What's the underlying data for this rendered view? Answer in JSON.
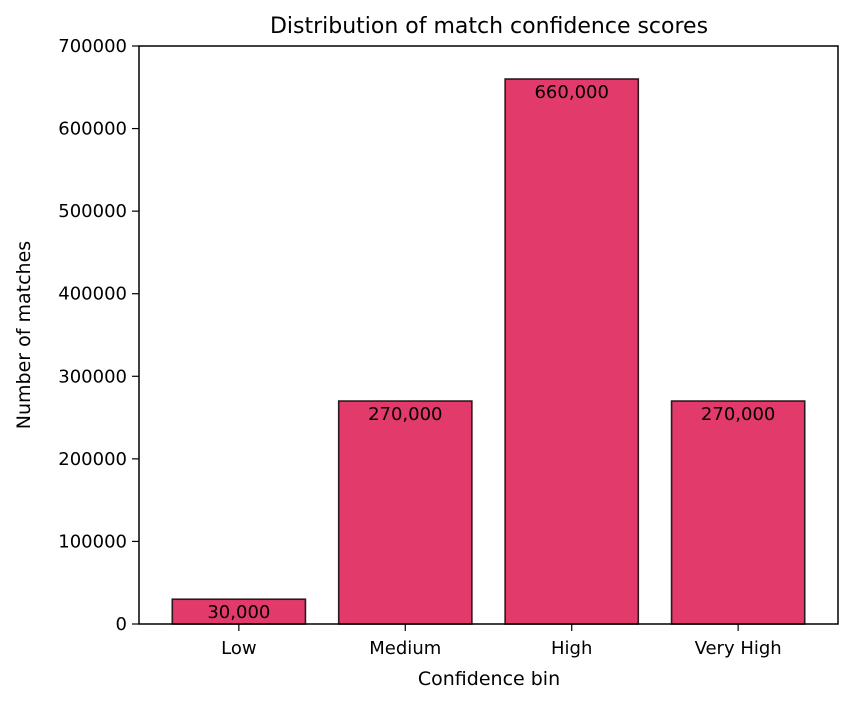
{
  "chart_data": {
    "type": "bar",
    "title": "Distribution of match confidence scores",
    "xlabel": "Confidence bin",
    "ylabel": "Number of matches",
    "categories": [
      "Low",
      "Medium",
      "High",
      "Very High"
    ],
    "values": [
      30000,
      270000,
      660000,
      270000
    ],
    "value_labels": [
      "30,000",
      "270,000",
      "660,000",
      "270,000"
    ],
    "ylim": [
      0,
      700000
    ],
    "yticks": [
      0,
      100000,
      200000,
      300000,
      400000,
      500000,
      600000,
      700000
    ],
    "ytick_labels": [
      "0",
      "100000",
      "200000",
      "300000",
      "400000",
      "500000",
      "600000",
      "700000"
    ],
    "bar_color": "#e23a6a",
    "bar_edge_color": "#2a1a1f",
    "grid": false,
    "legend": "none"
  }
}
